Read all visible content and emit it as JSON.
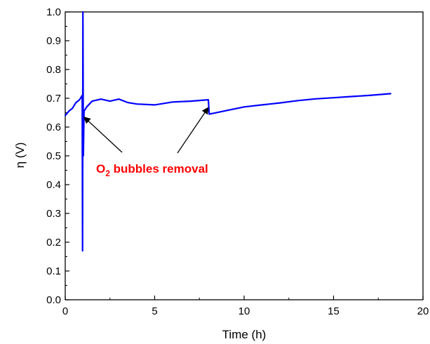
{
  "chart_data": {
    "type": "line",
    "title": "",
    "xlabel": "Time (h)",
    "ylabel": "η (V)",
    "xlim": [
      0,
      20
    ],
    "ylim": [
      0.0,
      1.0
    ],
    "xticks": [
      0,
      5,
      10,
      15,
      20
    ],
    "yticks": [
      0.0,
      0.1,
      0.2,
      0.3,
      0.4,
      0.5,
      0.6,
      0.7,
      0.8,
      0.9,
      1.0
    ],
    "xtick_labels": [
      "0",
      "5",
      "10",
      "15",
      "20"
    ],
    "ytick_labels": [
      "0.0",
      "0.1",
      "0.2",
      "0.3",
      "0.4",
      "0.5",
      "0.6",
      "0.7",
      "0.8",
      "0.9",
      "1.0"
    ],
    "grid": false,
    "series": [
      {
        "color": "#0000ff",
        "points": [
          [
            0.0,
            0.64
          ],
          [
            0.2,
            0.655
          ],
          [
            0.4,
            0.665
          ],
          [
            0.6,
            0.685
          ],
          [
            0.8,
            0.695
          ],
          [
            0.9,
            0.705
          ],
          [
            0.95,
            0.71
          ],
          [
            0.97,
            0.17
          ],
          [
            0.99,
            1.0
          ],
          [
            1.01,
            0.5
          ],
          [
            1.05,
            0.655
          ],
          [
            1.2,
            0.67
          ],
          [
            1.5,
            0.69
          ],
          [
            2.0,
            0.697
          ],
          [
            2.5,
            0.69
          ],
          [
            3.0,
            0.697
          ],
          [
            3.5,
            0.685
          ],
          [
            4.0,
            0.68
          ],
          [
            5.0,
            0.677
          ],
          [
            6.0,
            0.687
          ],
          [
            7.0,
            0.69
          ],
          [
            8.0,
            0.695
          ],
          [
            8.05,
            0.645
          ],
          [
            9.0,
            0.657
          ],
          [
            10.0,
            0.67
          ],
          [
            11.0,
            0.677
          ],
          [
            12.0,
            0.684
          ],
          [
            13.0,
            0.692
          ],
          [
            14.0,
            0.698
          ],
          [
            15.0,
            0.702
          ],
          [
            16.0,
            0.706
          ],
          [
            17.0,
            0.71
          ],
          [
            18.2,
            0.716
          ]
        ]
      }
    ],
    "annotation": {
      "text_main": "O",
      "text_sub": "2",
      "text_rest": " bubbles removal",
      "color": "#ff0000",
      "arrow_targets": [
        [
          1.05,
          0.635
        ],
        [
          8.0,
          0.668
        ]
      ]
    }
  }
}
